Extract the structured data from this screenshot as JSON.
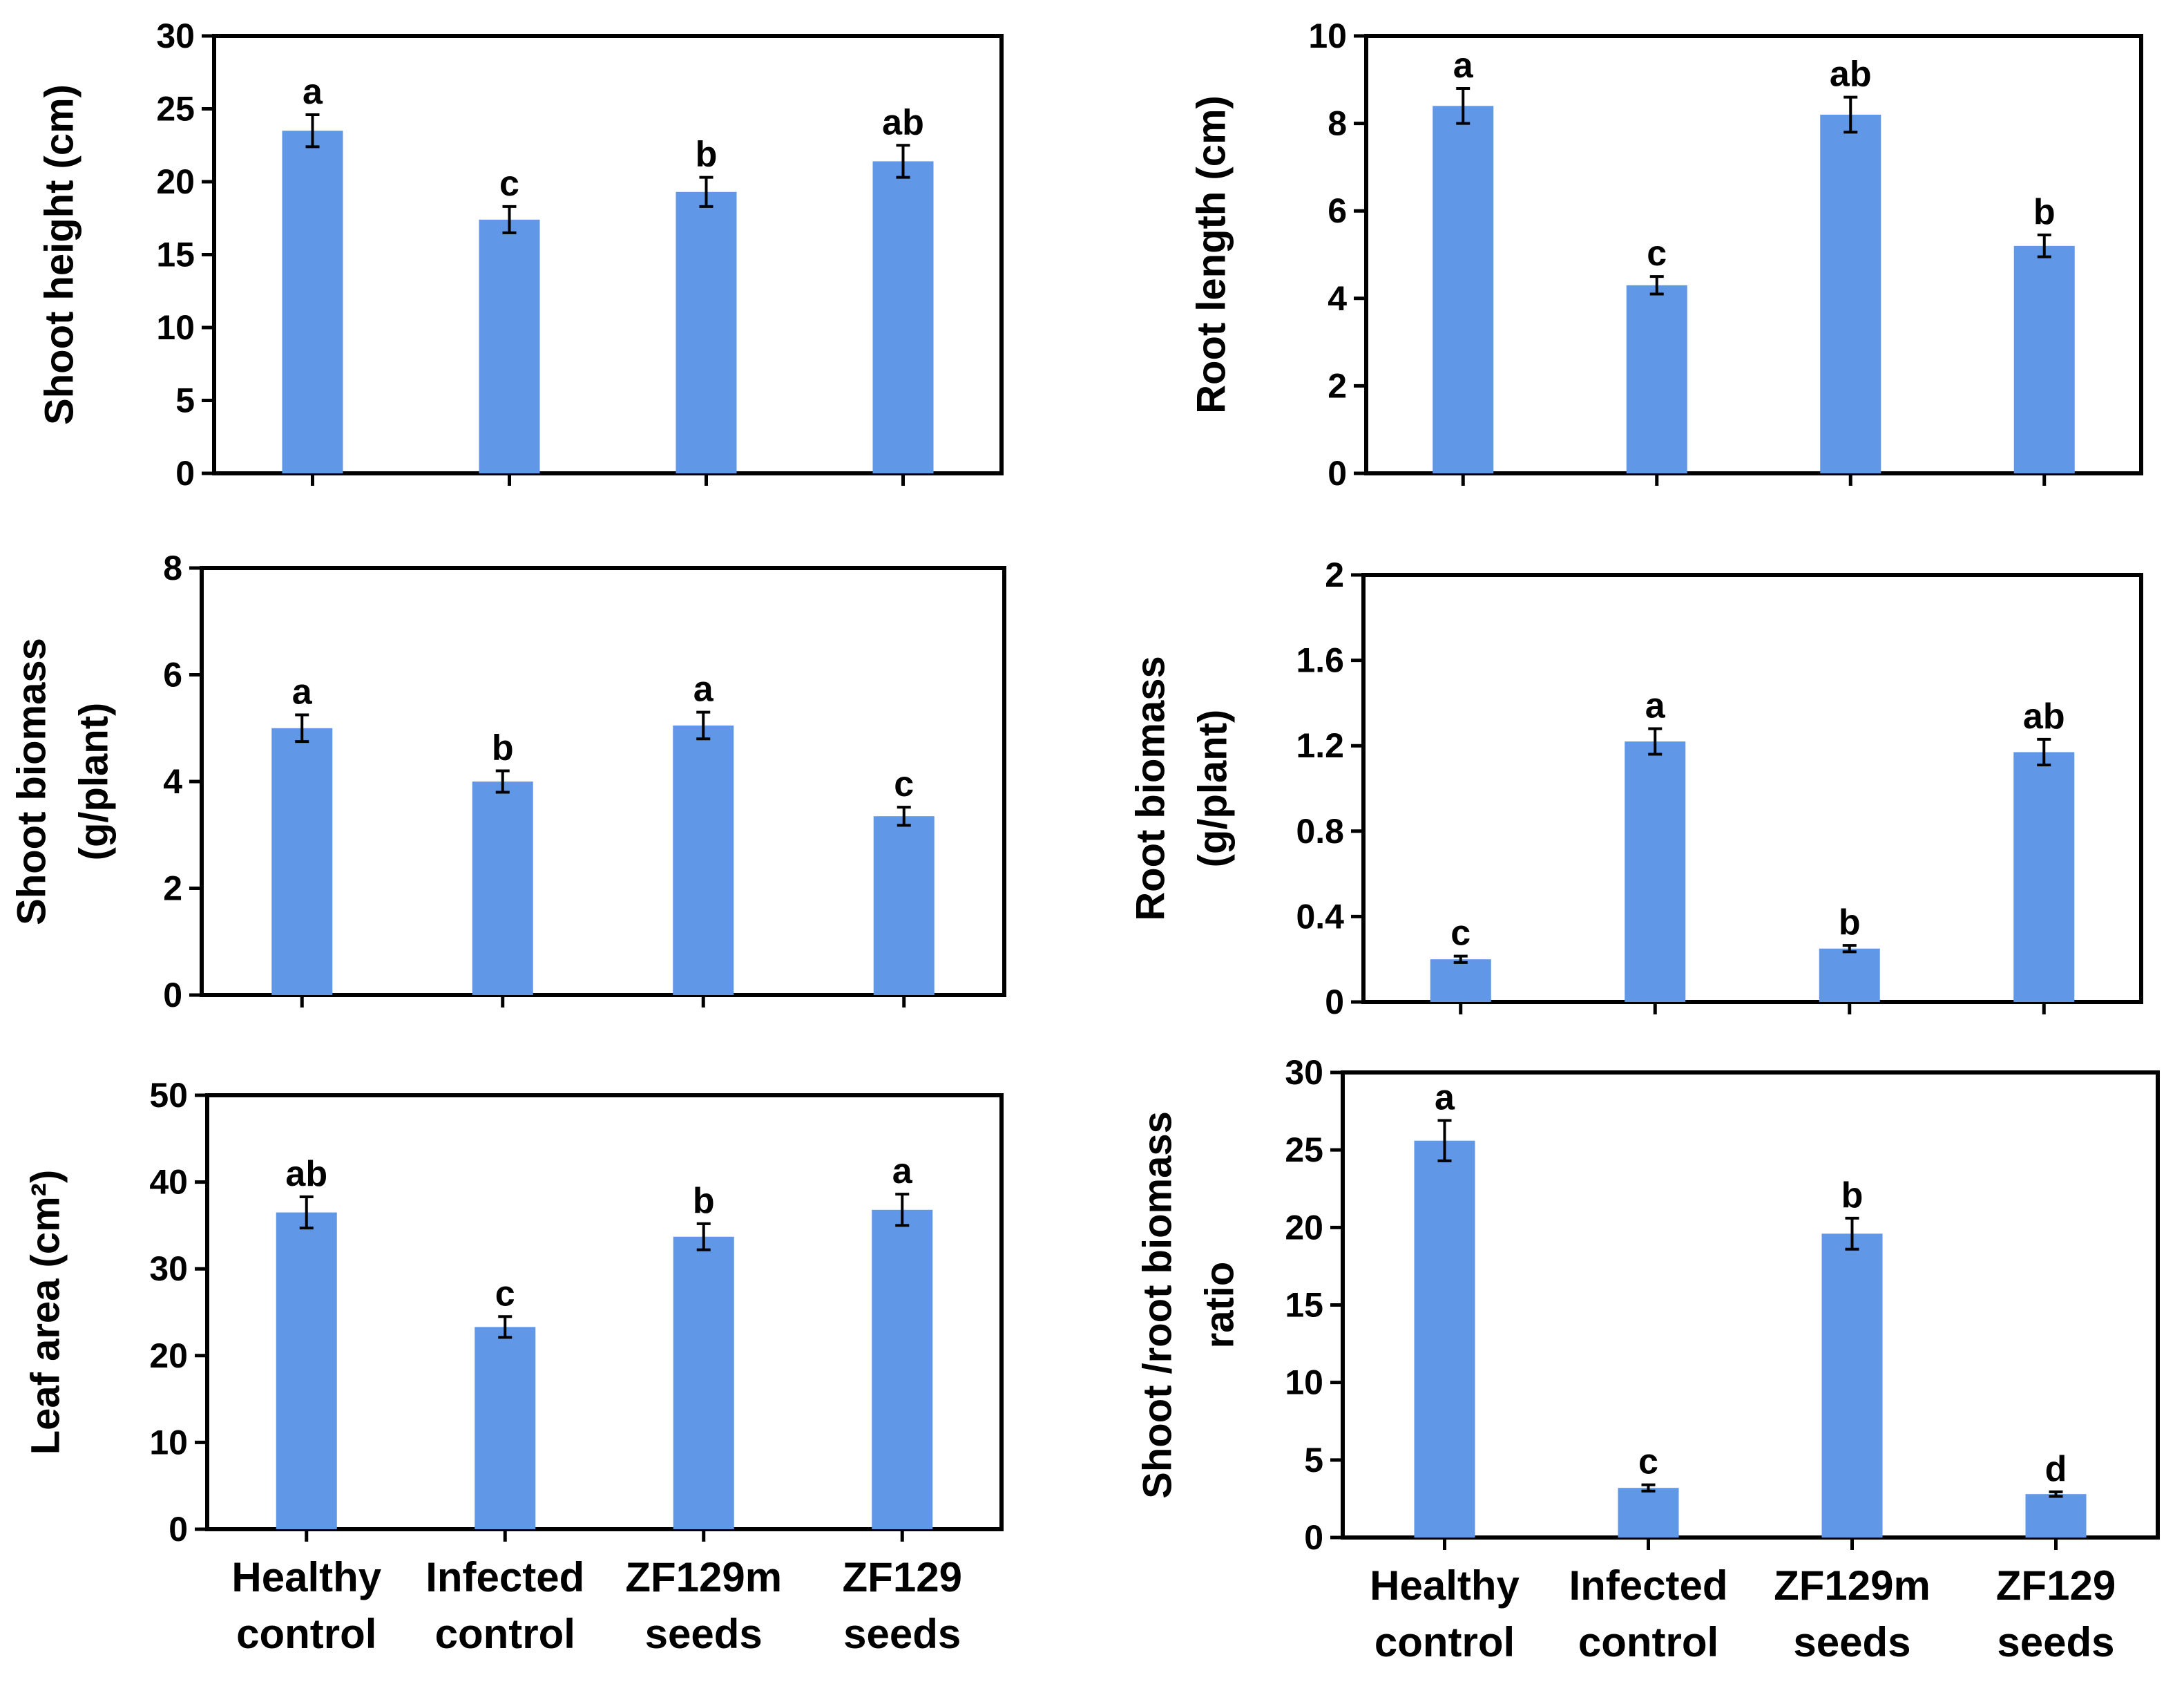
{
  "figure": {
    "bar_color": "#6097e6",
    "axis_color": "#000000"
  },
  "x_axis_labels": [
    [
      "Healthy",
      "control"
    ],
    [
      "Infected",
      "control"
    ],
    [
      "ZF129m",
      "seeds"
    ],
    [
      "ZF129",
      "seeds"
    ]
  ],
  "chart_data": [
    {
      "type": "bar",
      "panel": "top-left",
      "ylabel": [
        "Shoot height (cm)"
      ],
      "categories": [
        "Healthy control",
        "Infected control",
        "ZF129m seeds",
        "ZF129 seeds"
      ],
      "values": [
        23.5,
        17.4,
        19.3,
        21.4
      ],
      "errors": [
        1.1,
        0.9,
        1.0,
        1.1
      ],
      "significance": [
        "a",
        "c",
        "b",
        "ab"
      ],
      "ylim": [
        0,
        30
      ],
      "yticks": [
        0,
        5,
        10,
        15,
        20,
        25,
        30
      ],
      "ytick_labels": [
        "0",
        "5",
        "10",
        "15",
        "20",
        "25",
        "30"
      ]
    },
    {
      "type": "bar",
      "panel": "top-right",
      "ylabel": [
        "Root length (cm)"
      ],
      "categories": [
        "Healthy control",
        "Infected control",
        "ZF129m seeds",
        "ZF129 seeds"
      ],
      "values": [
        8.4,
        4.3,
        8.2,
        5.2
      ],
      "errors": [
        0.4,
        0.2,
        0.4,
        0.25
      ],
      "significance": [
        "a",
        "c",
        "ab",
        "b"
      ],
      "ylim": [
        0,
        10
      ],
      "yticks": [
        0,
        2,
        4,
        6,
        8,
        10
      ],
      "ytick_labels": [
        "0",
        "2",
        "4",
        "6",
        "8",
        "10"
      ]
    },
    {
      "type": "bar",
      "panel": "middle-left",
      "ylabel": [
        "Shoot biomass",
        "(g/plant)"
      ],
      "categories": [
        "Healthy control",
        "Infected control",
        "ZF129m seeds",
        "ZF129 seeds"
      ],
      "values": [
        5.0,
        4.0,
        5.05,
        3.35
      ],
      "errors": [
        0.25,
        0.2,
        0.25,
        0.17
      ],
      "significance": [
        "a",
        "b",
        "a",
        "c"
      ],
      "ylim": [
        0,
        8
      ],
      "yticks": [
        0,
        2,
        4,
        6,
        8
      ],
      "ytick_labels": [
        "0",
        "2",
        "4",
        "6",
        "8"
      ]
    },
    {
      "type": "bar",
      "panel": "middle-right",
      "ylabel": [
        "Root biomass",
        "(g/plant)"
      ],
      "categories": [
        "Healthy control",
        "Infected control",
        "ZF129m seeds",
        "ZF129 seeds"
      ],
      "values": [
        0.2,
        1.22,
        0.25,
        1.17
      ],
      "errors": [
        0.015,
        0.06,
        0.015,
        0.06
      ],
      "significance": [
        "c",
        "a",
        "b",
        "ab"
      ],
      "ylim": [
        0,
        2
      ],
      "yticks": [
        0,
        0.4,
        0.8,
        1.2,
        1.6,
        2
      ],
      "ytick_labels": [
        "0",
        "0.4",
        "0.8",
        "1.2",
        "1.6",
        "2"
      ]
    },
    {
      "type": "bar",
      "panel": "bottom-left",
      "ylabel": [
        "Leaf area (cm²)"
      ],
      "categories": [
        "Healthy control",
        "Infected control",
        "ZF129m seeds",
        "ZF129 seeds"
      ],
      "values": [
        36.5,
        23.3,
        33.7,
        36.8
      ],
      "errors": [
        1.8,
        1.2,
        1.5,
        1.8
      ],
      "significance": [
        "ab",
        "c",
        "b",
        "a"
      ],
      "ylim": [
        0,
        50
      ],
      "yticks": [
        0,
        10,
        20,
        30,
        40,
        50
      ],
      "ytick_labels": [
        "0",
        "10",
        "20",
        "30",
        "40",
        "50"
      ]
    },
    {
      "type": "bar",
      "panel": "bottom-right",
      "ylabel": [
        "Shoot /root biomass",
        "ratio"
      ],
      "categories": [
        "Healthy control",
        "Infected control",
        "ZF129m seeds",
        "ZF129 seeds"
      ],
      "values": [
        25.6,
        3.2,
        19.6,
        2.8
      ],
      "errors": [
        1.3,
        0.2,
        1.0,
        0.15
      ],
      "significance": [
        "a",
        "c",
        "b",
        "d"
      ],
      "ylim": [
        0,
        30
      ],
      "yticks": [
        0,
        5,
        10,
        15,
        20,
        25,
        30
      ],
      "ytick_labels": [
        "0",
        "5",
        "10",
        "15",
        "20",
        "25",
        "30"
      ]
    }
  ]
}
